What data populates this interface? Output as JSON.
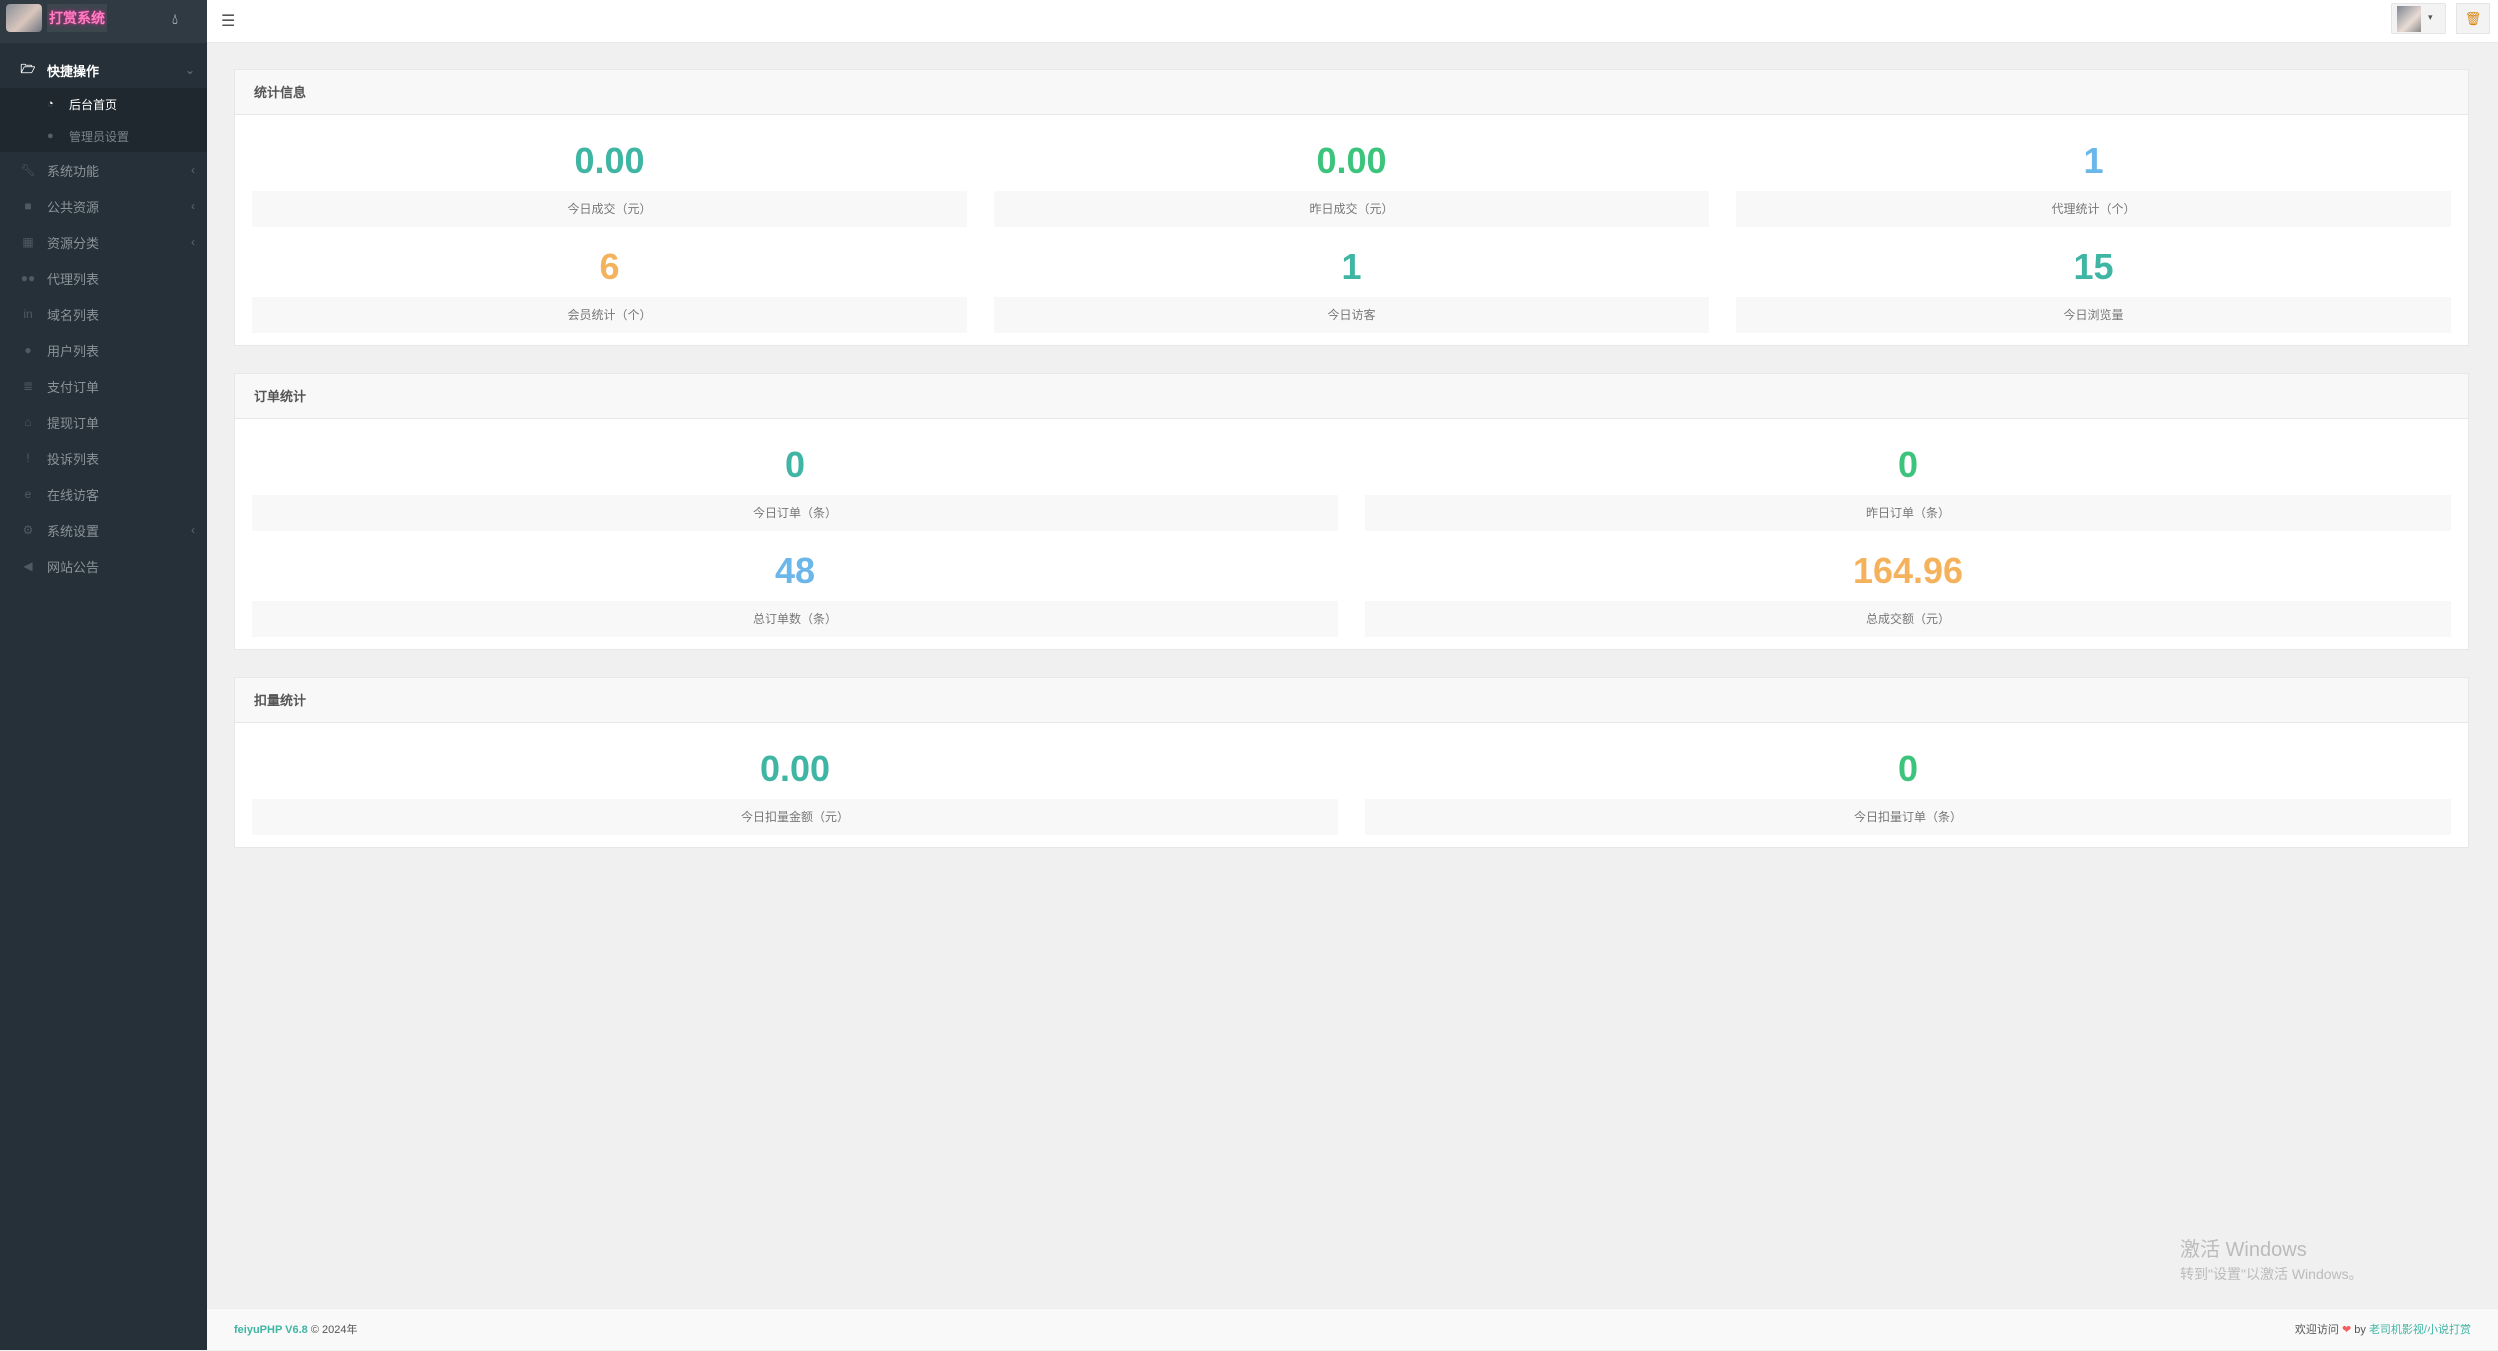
{
  "brand": {
    "logo_text": "打赏系统",
    "theme_icon": "droplet-icon"
  },
  "sidebar": {
    "items": [
      {
        "label": "快捷操作",
        "icon": "folder-open-icon",
        "arrow": "⌄",
        "open": true,
        "children": [
          {
            "label": "后台首页",
            "icon": "dashboard-icon",
            "active": true
          },
          {
            "label": "管理员设置",
            "icon": "user-icon"
          }
        ]
      },
      {
        "label": "系统功能",
        "icon": "wrench-icon",
        "arrow": "‹"
      },
      {
        "label": "公共资源",
        "icon": "video-camera-icon",
        "arrow": "‹"
      },
      {
        "label": "资源分类",
        "icon": "grid-icon",
        "arrow": "‹"
      },
      {
        "label": "代理列表",
        "icon": "users-icon"
      },
      {
        "label": "域名列表",
        "icon": "linkedin-icon"
      },
      {
        "label": "用户列表",
        "icon": "user-icon"
      },
      {
        "label": "支付订单",
        "icon": "database-icon"
      },
      {
        "label": "提现订单",
        "icon": "bank-icon"
      },
      {
        "label": "投诉列表",
        "icon": "exclamation-circle-icon"
      },
      {
        "label": "在线访客",
        "icon": "edge-icon"
      },
      {
        "label": "系统设置",
        "icon": "gear-icon",
        "arrow": "‹"
      },
      {
        "label": "网站公告",
        "icon": "bullhorn-icon"
      }
    ]
  },
  "topbar": {
    "menu_icon": "hamburger-icon",
    "user_caret": "▾",
    "trash_icon": "trash-icon"
  },
  "colors": {
    "teal": "#3fb5a3",
    "green": "#3cc47c",
    "blue": "#6cb7ea",
    "orange": "#f4b25d"
  },
  "panels": [
    {
      "title": "统计信息",
      "stats": [
        {
          "value": "0.00",
          "label": "今日成交（元）",
          "color": "#3fb5a3"
        },
        {
          "value": "0.00",
          "label": "昨日成交（元）",
          "color": "#3cc47c"
        },
        {
          "value": "1",
          "label": "代理统计（个）",
          "color": "#6cb7ea"
        },
        {
          "value": "6",
          "label": "会员统计（个）",
          "color": "#f4b25d"
        },
        {
          "value": "1",
          "label": "今日访客",
          "color": "#3fb5a3"
        },
        {
          "value": "15",
          "label": "今日浏览量",
          "color": "#3fb5a3"
        }
      ]
    },
    {
      "title": "订单统计",
      "stats": [
        {
          "value": "0",
          "label": "今日订单（条）",
          "color": "#3fb5a3"
        },
        {
          "value": "0",
          "label": "昨日订单（条）",
          "color": "#3cc47c"
        },
        {
          "value": "48",
          "label": "总订单数（条）",
          "color": "#6cb7ea"
        },
        {
          "value": "164.96",
          "label": "总成交额（元）",
          "color": "#f4b25d"
        }
      ]
    },
    {
      "title": "扣量统计",
      "stats": [
        {
          "value": "0.00",
          "label": "今日扣量金额（元）",
          "color": "#3fb5a3"
        },
        {
          "value": "0",
          "label": "今日扣量订单（条）",
          "color": "#3cc47c"
        }
      ]
    }
  ],
  "footer": {
    "brand": "feiyuPHP V6.8",
    "copyright": "© 2024年",
    "welcome": "欢迎访问",
    "by": "by",
    "site": "老司机影视/小说打赏"
  },
  "watermark": {
    "line1": "激活 Windows",
    "line2": "转到\"设置\"以激活 Windows。"
  }
}
